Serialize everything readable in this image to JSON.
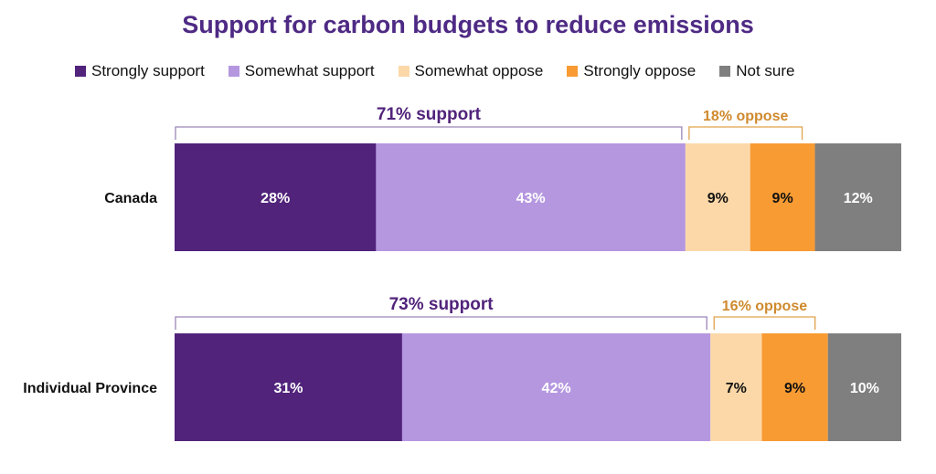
{
  "chart_data": {
    "type": "bar",
    "orientation": "horizontal-stacked",
    "title": "Support for carbon budgets to reduce emissions",
    "categories": [
      "Canada",
      "Individual Province"
    ],
    "series": [
      {
        "name": "Strongly support",
        "color": "#51237b",
        "label_color": "#ffffff",
        "values": [
          28,
          31
        ],
        "labels": [
          "28%",
          "31%"
        ]
      },
      {
        "name": "Somewhat support",
        "color": "#b597e0",
        "label_color": "#ffffff",
        "values": [
          43,
          42
        ],
        "labels": [
          "43%",
          "42%"
        ]
      },
      {
        "name": "Somewhat oppose",
        "color": "#fcd8a8",
        "label_color": "#111111",
        "values": [
          9,
          7
        ],
        "labels": [
          "9%",
          "7%"
        ]
      },
      {
        "name": "Strongly oppose",
        "color": "#f89b33",
        "label_color": "#111111",
        "values": [
          9,
          9
        ],
        "labels": [
          "9%",
          "9%"
        ]
      },
      {
        "name": "Not sure",
        "color": "#7f7f7f",
        "label_color": "#ffffff",
        "values": [
          12,
          10
        ],
        "labels": [
          "12%",
          "10%"
        ]
      }
    ],
    "groupings": [
      {
        "support_label": "71% support",
        "oppose_label": "18% oppose"
      },
      {
        "support_label": "73% support",
        "oppose_label": "16% oppose"
      }
    ],
    "legend_position": "top",
    "grid": false
  }
}
